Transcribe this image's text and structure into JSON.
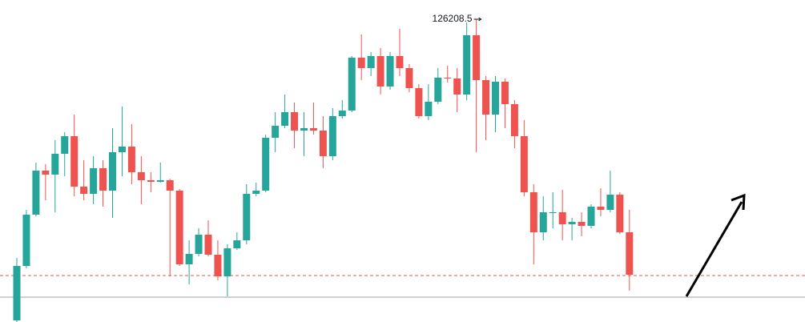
{
  "chart_data": {
    "type": "candlestick",
    "up_color": "#26a69a",
    "down_color": "#ef5350",
    "ylim": [
      99750,
      127890
    ],
    "label_candle": 48,
    "price_lines": [
      {
        "value": 103810,
        "color": "#e05a5a",
        "dashed": true
      },
      {
        "value": 101920,
        "color": "#9aa3ad",
        "dashed": false
      }
    ],
    "candles": [
      [
        99890,
        105350,
        99540,
        104650
      ],
      [
        104650,
        109550,
        104440,
        109130
      ],
      [
        109130,
        113680,
        108990,
        112980
      ],
      [
        112980,
        113540,
        110390,
        112630
      ],
      [
        112630,
        115640,
        109340,
        114450
      ],
      [
        114450,
        116340,
        112490,
        115990
      ],
      [
        115990,
        117880,
        110740,
        111580
      ],
      [
        111580,
        113890,
        110390,
        110950
      ],
      [
        110950,
        114240,
        110040,
        113190
      ],
      [
        113190,
        113890,
        109830,
        111230
      ],
      [
        111230,
        116690,
        108850,
        114590
      ],
      [
        114590,
        118580,
        112490,
        115080
      ],
      [
        115080,
        117040,
        111790,
        112840
      ],
      [
        112840,
        114240,
        110040,
        112140
      ],
      [
        112140,
        112840,
        111090,
        112000
      ],
      [
        112000,
        113680,
        111930,
        112140
      ],
      [
        112140,
        112280,
        103740,
        111230
      ],
      [
        111230,
        111370,
        104650,
        104790
      ],
      [
        104790,
        106890,
        103040,
        105700
      ],
      [
        105700,
        107940,
        105490,
        107380
      ],
      [
        107380,
        108640,
        105490,
        105630
      ],
      [
        105630,
        106890,
        103390,
        103740
      ],
      [
        103740,
        106540,
        101990,
        106190
      ],
      [
        106190,
        107590,
        106050,
        106890
      ],
      [
        106890,
        111790,
        106540,
        110950
      ],
      [
        110950,
        111930,
        110740,
        111230
      ],
      [
        111230,
        116130,
        111090,
        115850
      ],
      [
        115850,
        118090,
        114590,
        116900
      ],
      [
        116900,
        119630,
        116690,
        118090
      ],
      [
        118090,
        118930,
        114940,
        116480
      ],
      [
        116480,
        118090,
        114240,
        116690
      ],
      [
        116690,
        118930,
        116130,
        116480
      ],
      [
        116480,
        117740,
        113190,
        114240
      ],
      [
        114240,
        118440,
        113890,
        117740
      ],
      [
        117740,
        119140,
        117530,
        118230
      ],
      [
        118230,
        122990,
        118090,
        122850
      ],
      [
        122850,
        124880,
        120890,
        121940
      ],
      [
        121940,
        123340,
        121240,
        122990
      ],
      [
        122990,
        123690,
        119630,
        120330
      ],
      [
        120330,
        123340,
        120050,
        122990
      ],
      [
        122990,
        125370,
        121240,
        121940
      ],
      [
        121940,
        122290,
        119840,
        120190
      ],
      [
        120190,
        120540,
        117530,
        117740
      ],
      [
        117740,
        120540,
        117390,
        119000
      ],
      [
        119000,
        121940,
        118790,
        121100
      ],
      [
        121100,
        122150,
        120680,
        121030
      ],
      [
        121030,
        121940,
        118090,
        119630
      ],
      [
        119630,
        125930,
        119140,
        124810
      ],
      [
        124810,
        126208.5,
        114590,
        120890
      ],
      [
        120890,
        121240,
        115640,
        117880
      ],
      [
        117880,
        121240,
        116340,
        120750
      ],
      [
        120750,
        121030,
        116690,
        118790
      ],
      [
        118790,
        119140,
        114940,
        115990
      ],
      [
        115990,
        117390,
        110740,
        111090
      ],
      [
        111090,
        111790,
        104790,
        107590
      ],
      [
        107590,
        110740,
        106890,
        109340
      ],
      [
        109340,
        111090,
        107940,
        109340
      ],
      [
        109340,
        111300,
        106890,
        108290
      ],
      [
        108290,
        108850,
        106890,
        108500
      ],
      [
        108500,
        109340,
        107240,
        108150
      ],
      [
        108150,
        110040,
        107940,
        109830
      ],
      [
        109830,
        111440,
        108990,
        109550
      ],
      [
        109550,
        112980,
        109340,
        110880
      ],
      [
        110880,
        111090,
        107450,
        107590
      ],
      [
        107590,
        109550,
        102480,
        103880
      ]
    ]
  }
}
